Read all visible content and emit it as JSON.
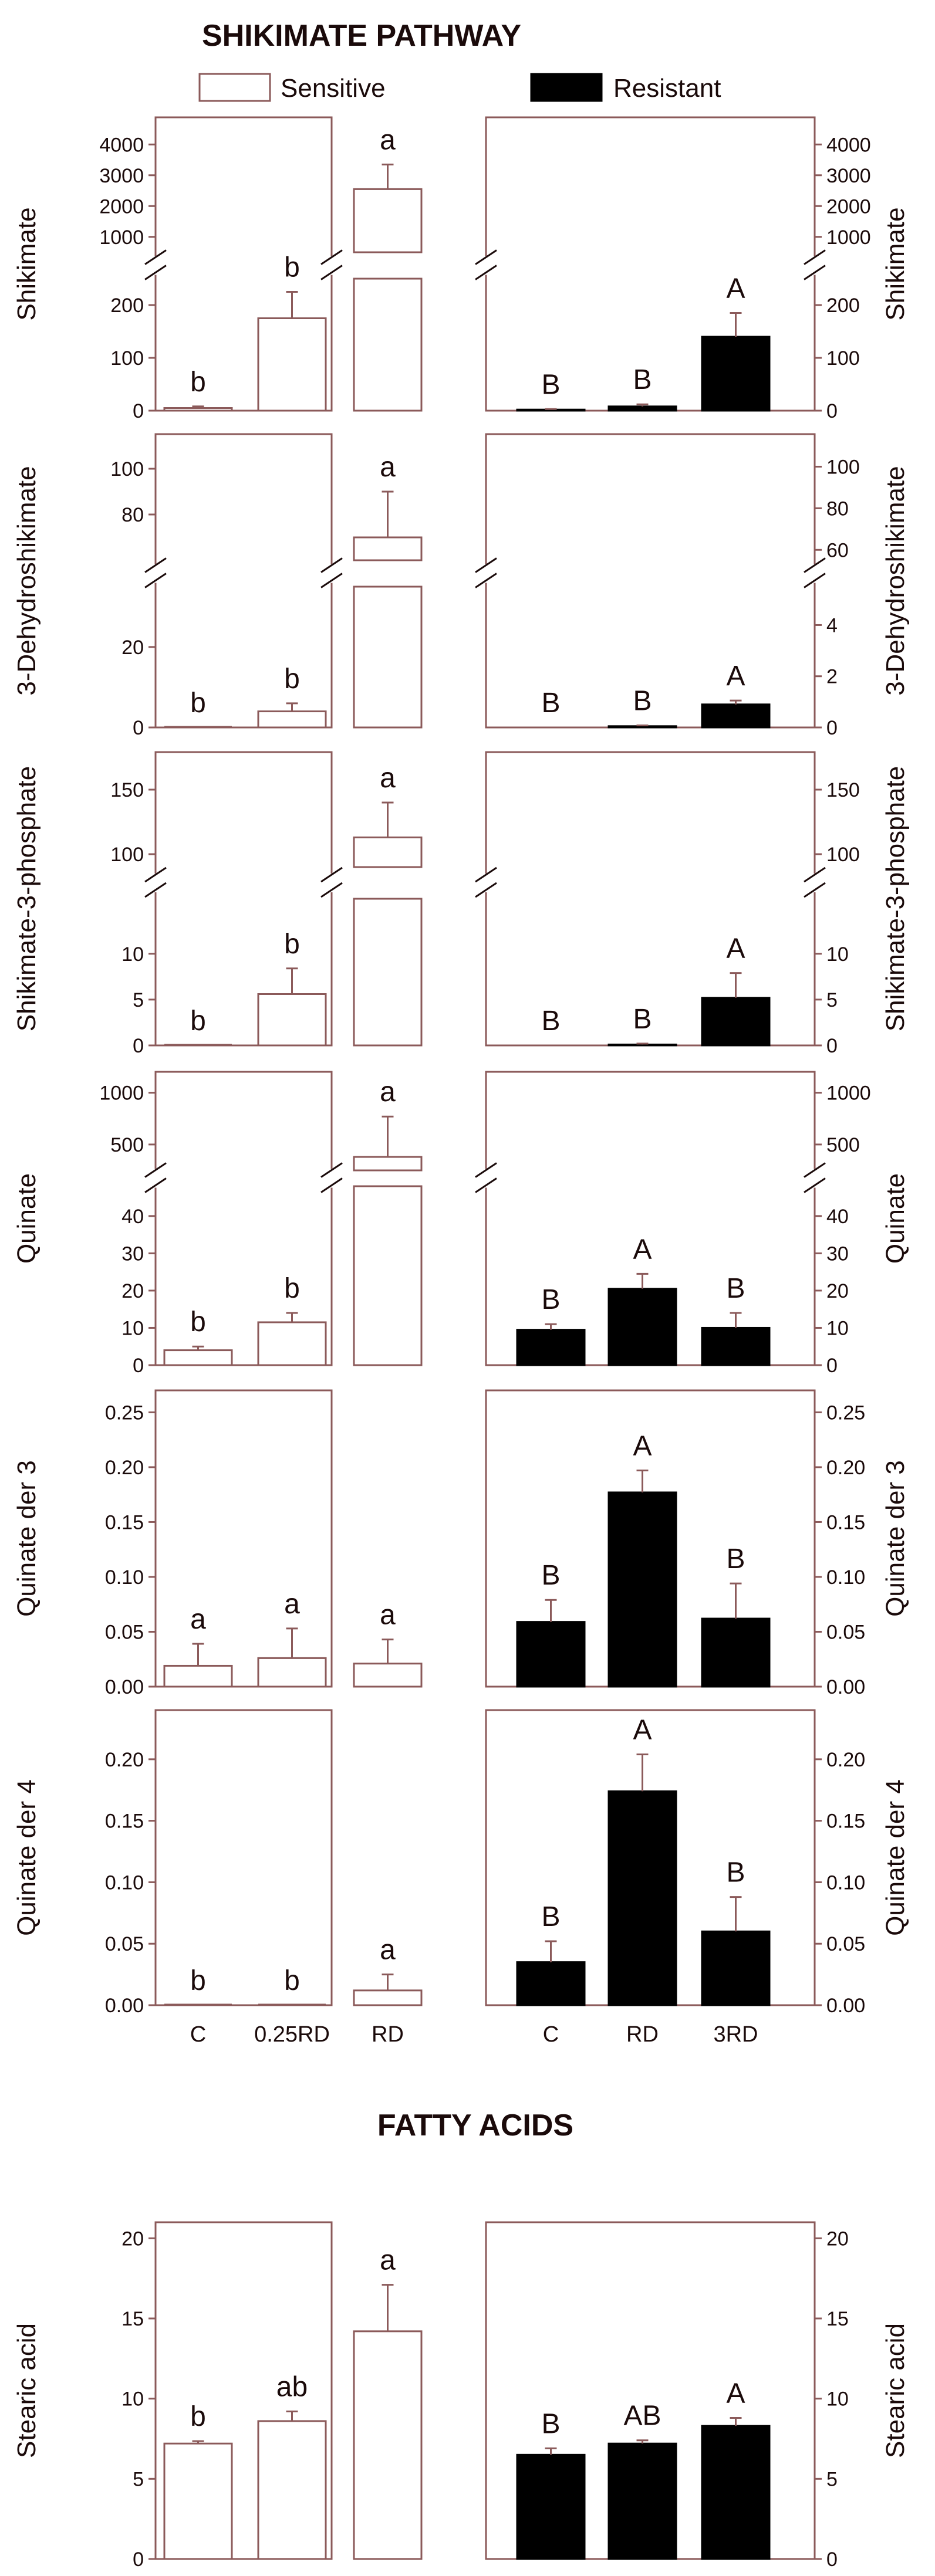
{
  "titles": {
    "shikimate_pathway": "SHIKIMATE PATHWAY",
    "fatty_acids": "FATTY ACIDS"
  },
  "legend": {
    "sensitive": "Sensitive",
    "resistant": "Resistant"
  },
  "colors": {
    "sensitive_fill": "#ffffff",
    "resistant_fill": "#000000",
    "axis": "#8b5a5a",
    "text": "#1a0a0a"
  },
  "x_categories": {
    "sensitive": [
      "C",
      "0.25RD",
      "RD"
    ],
    "resistant": [
      "C",
      "RD",
      "3RD"
    ]
  },
  "chart_data": [
    {
      "type": "bar",
      "title": "Shikimate",
      "ylabel": "Shikimate",
      "broken_axis": true,
      "y_lower_range": [
        0,
        250
      ],
      "y_lower_ticks": [
        "0",
        "100",
        "200"
      ],
      "y_upper_range": [
        500,
        4500
      ],
      "y_upper_ticks": [
        "1000",
        "2000",
        "3000",
        "4000"
      ],
      "series": [
        {
          "name": "Sensitive",
          "categories": [
            "C",
            "0.25RD",
            "RD"
          ],
          "values": [
            5,
            175,
            2550
          ],
          "errors": [
            3,
            50,
            800
          ],
          "letters": [
            "b",
            "b",
            "a"
          ]
        },
        {
          "name": "Resistant",
          "categories": [
            "C",
            "RD",
            "3RD"
          ],
          "values": [
            2,
            8,
            140
          ],
          "errors": [
            1,
            4,
            45
          ],
          "letters": [
            "B",
            "B",
            "A"
          ]
        }
      ]
    },
    {
      "type": "bar",
      "title": "3-Dehydroshikimate",
      "ylabel": "3-Dehydroshikimate",
      "broken_axis": true,
      "sensitive_lower_range": [
        0,
        35
      ],
      "sensitive_lower_ticks": [
        "0",
        "20"
      ],
      "sensitive_upper_range": [
        60,
        110
      ],
      "sensitive_upper_ticks": [
        "80",
        "100"
      ],
      "resistant_lower_range": [
        0,
        5.5
      ],
      "resistant_lower_ticks": [
        "0",
        "2",
        "4"
      ],
      "resistant_upper_range": [
        55,
        110
      ],
      "resistant_upper_ticks": [
        "60",
        "80",
        "100"
      ],
      "series": [
        {
          "name": "Sensitive",
          "categories": [
            "C",
            "0.25RD",
            "RD"
          ],
          "values": [
            0,
            4,
            70
          ],
          "errors": [
            0,
            2,
            20
          ],
          "letters": [
            "b",
            "b",
            "a"
          ]
        },
        {
          "name": "Resistant",
          "categories": [
            "C",
            "RD",
            "3RD"
          ],
          "values": [
            0,
            0.05,
            0.9
          ],
          "errors": [
            0,
            0.03,
            0.15
          ],
          "letters": [
            "B",
            "B",
            "A"
          ]
        }
      ]
    },
    {
      "type": "bar",
      "title": "Shikimate-3-phosphate",
      "ylabel": "Shikimate-3-phosphate",
      "broken_axis": true,
      "y_lower_range": [
        0,
        16
      ],
      "y_lower_ticks": [
        "0",
        "5",
        "10"
      ],
      "y_upper_range": [
        90,
        170
      ],
      "y_upper_ticks": [
        "100",
        "150"
      ],
      "series": [
        {
          "name": "Sensitive",
          "categories": [
            "C",
            "0.25RD",
            "RD"
          ],
          "values": [
            0,
            5.6,
            113
          ],
          "errors": [
            0,
            2.8,
            27
          ],
          "letters": [
            "b",
            "b",
            "a"
          ]
        },
        {
          "name": "Resistant",
          "categories": [
            "C",
            "RD",
            "3RD"
          ],
          "values": [
            0,
            0.1,
            5.2
          ],
          "errors": [
            0,
            0.1,
            2.7
          ],
          "letters": [
            "B",
            "B",
            "A"
          ]
        }
      ]
    },
    {
      "type": "bar",
      "title": "Quinate",
      "ylabel": "Quinate",
      "broken_axis": true,
      "y_lower_range": [
        0,
        48
      ],
      "y_lower_ticks": [
        "0",
        "10",
        "20",
        "30",
        "40"
      ],
      "y_upper_range": [
        250,
        1100
      ],
      "y_upper_ticks": [
        "500",
        "1000"
      ],
      "series": [
        {
          "name": "Sensitive",
          "categories": [
            "C",
            "0.25RD",
            "RD"
          ],
          "values": [
            4,
            11.5,
            380
          ],
          "errors": [
            1,
            2.5,
            390
          ],
          "letters": [
            "b",
            "b",
            "a"
          ]
        },
        {
          "name": "Resistant",
          "categories": [
            "C",
            "RD",
            "3RD"
          ],
          "values": [
            9.5,
            20.5,
            10
          ],
          "errors": [
            1.5,
            4,
            4
          ],
          "letters": [
            "B",
            "A",
            "B"
          ]
        }
      ]
    },
    {
      "type": "bar",
      "title": "Quinate der 3",
      "ylabel": "Quinate der 3",
      "ylim": [
        0,
        0.27
      ],
      "y_ticks": [
        "0.00",
        "0.05",
        "0.10",
        "0.15",
        "0.20",
        "0.25"
      ],
      "series": [
        {
          "name": "Sensitive",
          "categories": [
            "C",
            "0.25RD",
            "RD"
          ],
          "values": [
            0.019,
            0.026,
            0.021
          ],
          "errors": [
            0.02,
            0.027,
            0.022
          ],
          "letters": [
            "a",
            "a",
            "a"
          ]
        },
        {
          "name": "Resistant",
          "categories": [
            "C",
            "RD",
            "3RD"
          ],
          "values": [
            0.059,
            0.177,
            0.062
          ],
          "errors": [
            0.02,
            0.02,
            0.032
          ],
          "letters": [
            "B",
            "A",
            "B"
          ]
        }
      ]
    },
    {
      "type": "bar",
      "title": "Quinate der 4",
      "ylabel": "Quinate der 4",
      "ylim": [
        0,
        0.24
      ],
      "y_ticks": [
        "0.00",
        "0.05",
        "0.10",
        "0.15",
        "0.20"
      ],
      "series": [
        {
          "name": "Sensitive",
          "categories": [
            "C",
            "0.25RD",
            "RD"
          ],
          "values": [
            0,
            0,
            0.012
          ],
          "errors": [
            0,
            0,
            0.013
          ],
          "letters": [
            "b",
            "b",
            "a"
          ]
        },
        {
          "name": "Resistant",
          "categories": [
            "C",
            "RD",
            "3RD"
          ],
          "values": [
            0.035,
            0.174,
            0.06
          ],
          "errors": [
            0.017,
            0.03,
            0.028
          ],
          "letters": [
            "B",
            "A",
            "B"
          ]
        }
      ]
    },
    {
      "type": "bar",
      "title": "Stearic acid",
      "ylabel": "Stearic acid",
      "ylim": [
        0,
        21
      ],
      "y_ticks": [
        "0",
        "5",
        "10",
        "15",
        "20"
      ],
      "series": [
        {
          "name": "Sensitive",
          "categories": [
            "C",
            "0.25RD",
            "RD"
          ],
          "values": [
            7.2,
            8.6,
            14.2
          ],
          "errors": [
            0.15,
            0.6,
            2.9
          ],
          "letters": [
            "b",
            "ab",
            "a"
          ]
        },
        {
          "name": "Resistant",
          "categories": [
            "C",
            "RD",
            "3RD"
          ],
          "values": [
            6.5,
            7.2,
            8.3
          ],
          "errors": [
            0.4,
            0.2,
            0.5
          ],
          "letters": [
            "B",
            "AB",
            "A"
          ]
        }
      ]
    }
  ]
}
